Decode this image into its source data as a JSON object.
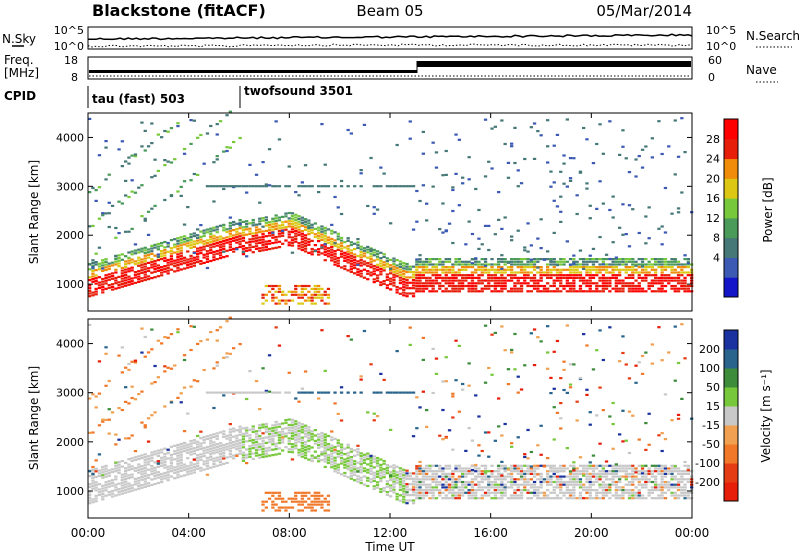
{
  "header": {
    "station": "Blackstone (fitACF)",
    "beam": "Beam 05",
    "date": "05/Mar/2014"
  },
  "noise_panel": {
    "left_label": "N.Sky",
    "left_ticks": [
      "10^5",
      "10^0"
    ],
    "right_ticks": [
      "10^5",
      "10^0"
    ],
    "right_label": "N.Search"
  },
  "freq_panel": {
    "left_label_line1": "Freq.",
    "left_label_line2": "[MHz]",
    "left_ticks": [
      "18",
      "8"
    ],
    "right_ticks": [
      "60",
      "0"
    ],
    "right_label": "Nave"
  },
  "cpid": {
    "label": "CPID",
    "modes": [
      {
        "name": "tau (fast) 503",
        "start_hour": 0
      },
      {
        "name": "twofsound 3501",
        "start_hour": 6
      }
    ]
  },
  "chart_data": [
    {
      "type": "heatmap",
      "name": "power",
      "ylabel": "Slant Range [km]",
      "yticks": [
        "1000",
        "2000",
        "3000",
        "4000"
      ],
      "ylim": [
        450,
        4500
      ],
      "xlim": [
        0,
        24
      ],
      "colorbar_label": "Power [dB]",
      "colorbar_ticks": [
        "4",
        "8",
        "12",
        "16",
        "20",
        "24",
        "28"
      ],
      "colorbar_range": [
        0,
        32
      ],
      "colors": [
        "#1414c8",
        "#3c5ab4",
        "#467878",
        "#4a9a5a",
        "#78c83c",
        "#dcc814",
        "#f08c0a",
        "#e61e0a",
        "#ff0000"
      ]
    },
    {
      "type": "heatmap",
      "name": "velocity",
      "ylabel": "Slant Range [km]",
      "yticks": [
        "1000",
        "2000",
        "3000",
        "4000"
      ],
      "ylim": [
        450,
        4500
      ],
      "xlim": [
        0,
        24
      ],
      "colorbar_label": "Velocity [m s⁻¹]",
      "colorbar_ticks": [
        "200",
        "100",
        "50",
        "15",
        "-15",
        "-50",
        "-100",
        "-200"
      ],
      "colors": [
        "#1a32a0",
        "#28648c",
        "#3c8c3c",
        "#78c83c",
        "#c8c8c8",
        "#f0a050",
        "#f07828",
        "#e63c14",
        "#e61e0a"
      ]
    }
  ],
  "xaxis": {
    "ticks": [
      "00:00",
      "04:00",
      "08:00",
      "12:00",
      "16:00",
      "20:00",
      "00:00"
    ],
    "label": "Time UT"
  }
}
